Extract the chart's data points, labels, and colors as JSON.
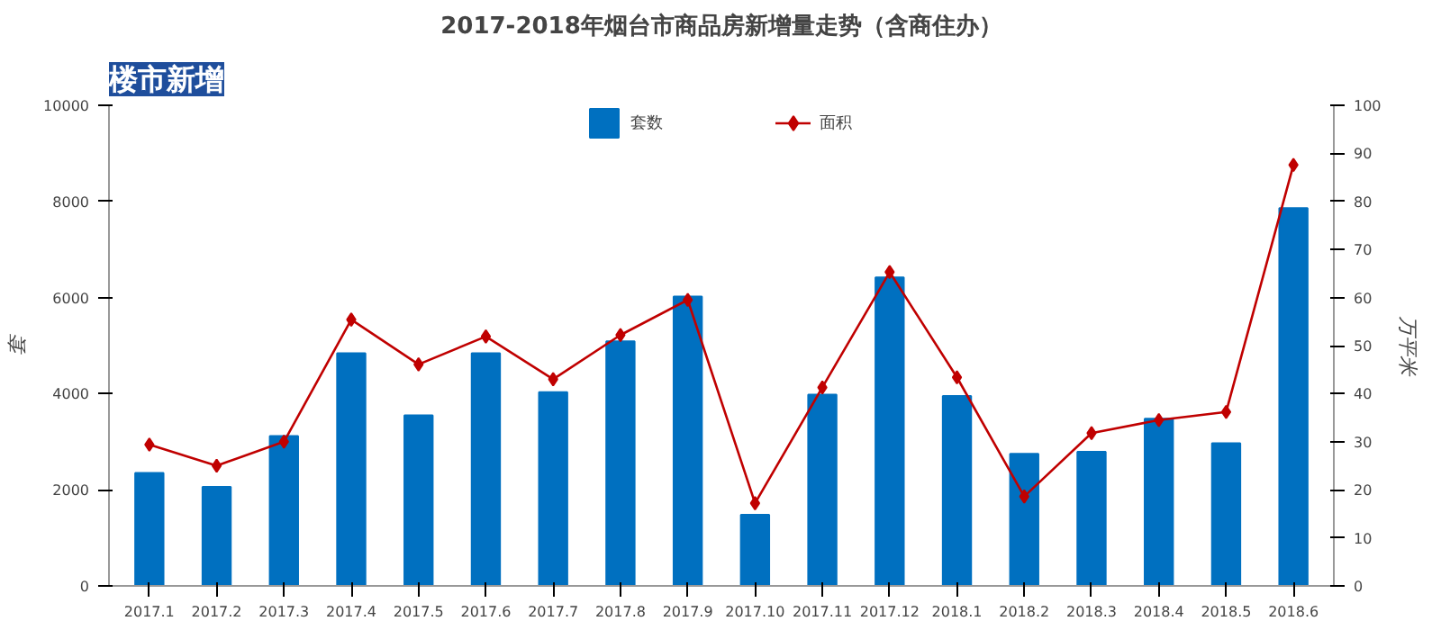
{
  "chart_data": {
    "type": "bar",
    "title": "2017-2018年烟台市商品房新增量走势（含商住办）",
    "subtitle": "楼市新增",
    "ylabel": "套",
    "y2label": "万平米",
    "categories": [
      "2017.1",
      "2017.2",
      "2017.3",
      "2017.4",
      "2017.5",
      "2017.6",
      "2017.7",
      "2017.8",
      "2017.9",
      "2017.10",
      "2017.11",
      "2017.12",
      "2018.1",
      "2018.2",
      "2018.3",
      "2018.4",
      "2018.5",
      "2018.6"
    ],
    "series": [
      {
        "name": "套数",
        "color": "#0070c0",
        "values": [
          2350,
          2060,
          3120,
          4840,
          3550,
          4840,
          4030,
          5090,
          6020,
          1480,
          3980,
          6420,
          3950,
          2750,
          2790,
          3480,
          2970,
          7860
        ]
      },
      {
        "name": "面积",
        "type": "line",
        "axis": "y2",
        "color": "#c00000",
        "marker": "diamond",
        "values": [
          29.4,
          25.0,
          30.0,
          55.4,
          46.1,
          51.9,
          43.0,
          52.2,
          59.5,
          17.2,
          41.3,
          65.3,
          43.4,
          18.6,
          31.8,
          34.5,
          36.2,
          87.6
        ]
      }
    ],
    "ylim": [
      0,
      10000
    ],
    "yticks": [
      0,
      2000,
      4000,
      6000,
      8000,
      10000
    ],
    "y2lim": [
      0,
      100
    ],
    "y2ticks": [
      0,
      10,
      20,
      30,
      40,
      50,
      60,
      70,
      80,
      90,
      100
    ],
    "legend": "top",
    "grid": false
  }
}
